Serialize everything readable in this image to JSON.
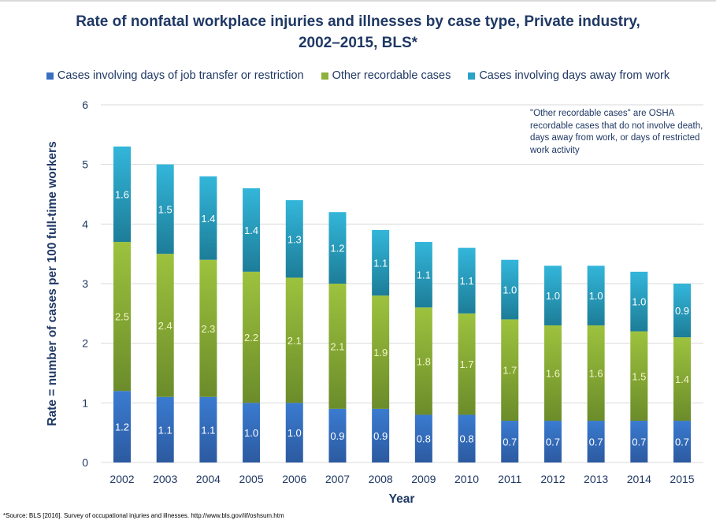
{
  "chart_data": {
    "type": "bar",
    "stacked": true,
    "title_line1": "Rate of nonfatal workplace injuries and illnesses by case type, Private industry,",
    "title_line2": "2002–2015, BLS*",
    "xlabel": "Year",
    "ylabel": "Rate = number of cases per 100 full-time workers",
    "ylim": [
      0,
      6
    ],
    "yticks": [
      "0",
      "1",
      "2",
      "3",
      "4",
      "5",
      "6"
    ],
    "grid": true,
    "legend_position": "top",
    "categories": [
      "2002",
      "2003",
      "2004",
      "2005",
      "2006",
      "2007",
      "2008",
      "2009",
      "2010",
      "2011",
      "2012",
      "2013",
      "2014",
      "2015"
    ],
    "series": [
      {
        "name": "Cases involving days of job transfer or restriction",
        "color": "#3a7bd0",
        "color_dark": "#2c5aa0",
        "label_color": "#ffffff",
        "values": [
          1.2,
          1.1,
          1.1,
          1.0,
          1.0,
          0.9,
          0.9,
          0.8,
          0.8,
          0.7,
          0.7,
          0.7,
          0.7,
          0.7
        ],
        "labels": [
          "1.2",
          "1.1",
          "1.1",
          "1.0",
          "1.0",
          "0.9",
          "0.9",
          "0.8",
          "0.8",
          "0.7",
          "0.7",
          "0.7",
          "0.7",
          "0.7"
        ]
      },
      {
        "name": "Other recordable cases",
        "color": "#9dc23e",
        "color_dark": "#6b8c2a",
        "label_color": "#f2f5c8",
        "values": [
          2.5,
          2.4,
          2.3,
          2.2,
          2.1,
          2.1,
          1.9,
          1.8,
          1.7,
          1.7,
          1.6,
          1.6,
          1.5,
          1.4
        ],
        "labels": [
          "2.5",
          "2.4",
          "2.3",
          "2.2",
          "2.1",
          "2.1",
          "1.9",
          "1.8",
          "1.7",
          "1.7",
          "1.6",
          "1.6",
          "1.5",
          "1.4"
        ]
      },
      {
        "name": "Cases involving days away from work",
        "color": "#33b6da",
        "color_dark": "#1d7d98",
        "label_color": "#ffffff",
        "values": [
          1.6,
          1.5,
          1.4,
          1.4,
          1.3,
          1.2,
          1.1,
          1.1,
          1.1,
          1.0,
          1.0,
          1.0,
          1.0,
          0.9
        ],
        "labels": [
          "1.6",
          "1.5",
          "1.4",
          "1.4",
          "1.3",
          "1.2",
          "1.1",
          "1.1",
          "1.1",
          "1.0",
          "1.0",
          "1.0",
          "1.0",
          "0.9"
        ]
      }
    ],
    "annotation": "\"Other recordable cases\" are OSHA recordable cases that do not involve death, days away from work, or days of restricted work activity"
  },
  "source_note": "*Source: BLS [2016]. Survey of occupational injuries and illnesses. http://www.bls.gov/iif/oshsum.htm"
}
